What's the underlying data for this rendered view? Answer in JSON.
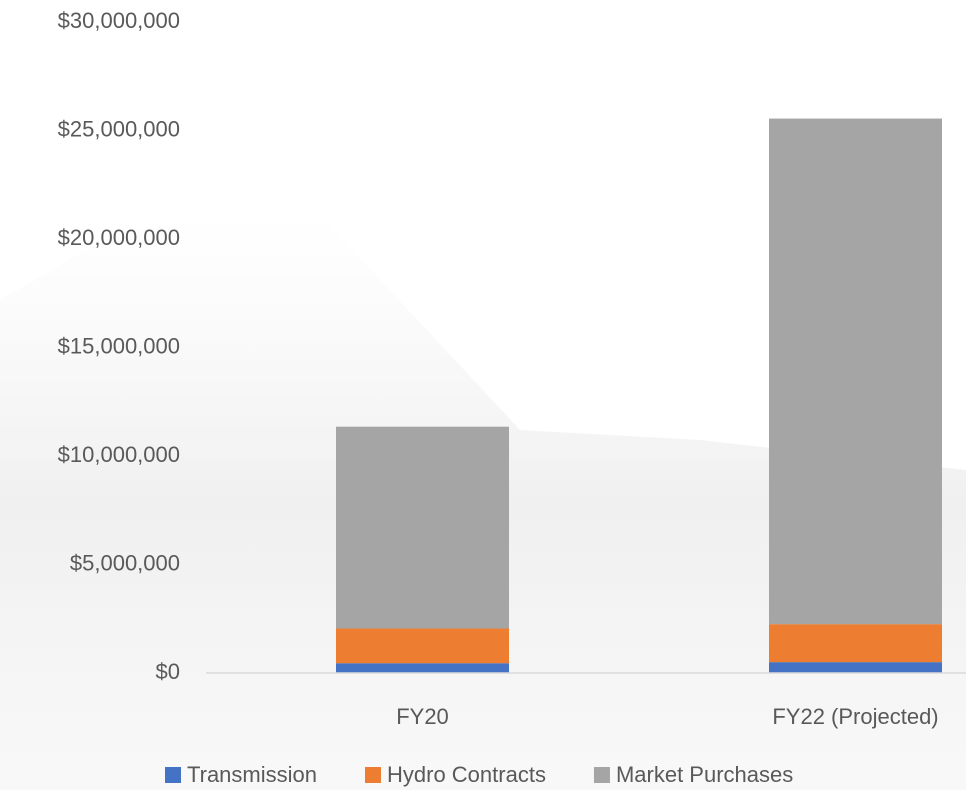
{
  "chart_data": {
    "type": "stacked-bar",
    "categories": [
      "FY20",
      "FY22 (Projected)"
    ],
    "series": [
      {
        "name": "Transmission",
        "color": "#4472c4",
        "values": [
          450000,
          500000
        ]
      },
      {
        "name": "Hydro Contracts",
        "color": "#ed7d31",
        "values": [
          1600000,
          1750000
        ]
      },
      {
        "name": "Market Purchases",
        "color": "#a5a5a5",
        "values": [
          9300000,
          23300000
        ]
      }
    ],
    "ylim": [
      0,
      30000000
    ],
    "yticks": [
      {
        "value": 0,
        "label": "$0"
      },
      {
        "value": 5000000,
        "label": "$5,000,000"
      },
      {
        "value": 10000000,
        "label": "$10,000,000"
      },
      {
        "value": 15000000,
        "label": "$15,000,000"
      },
      {
        "value": 20000000,
        "label": "$20,000,000"
      },
      {
        "value": 25000000,
        "label": "$25,000,000"
      },
      {
        "value": 30000000,
        "label": "$30,000,000"
      }
    ],
    "grid": false,
    "legend": "bottom"
  }
}
